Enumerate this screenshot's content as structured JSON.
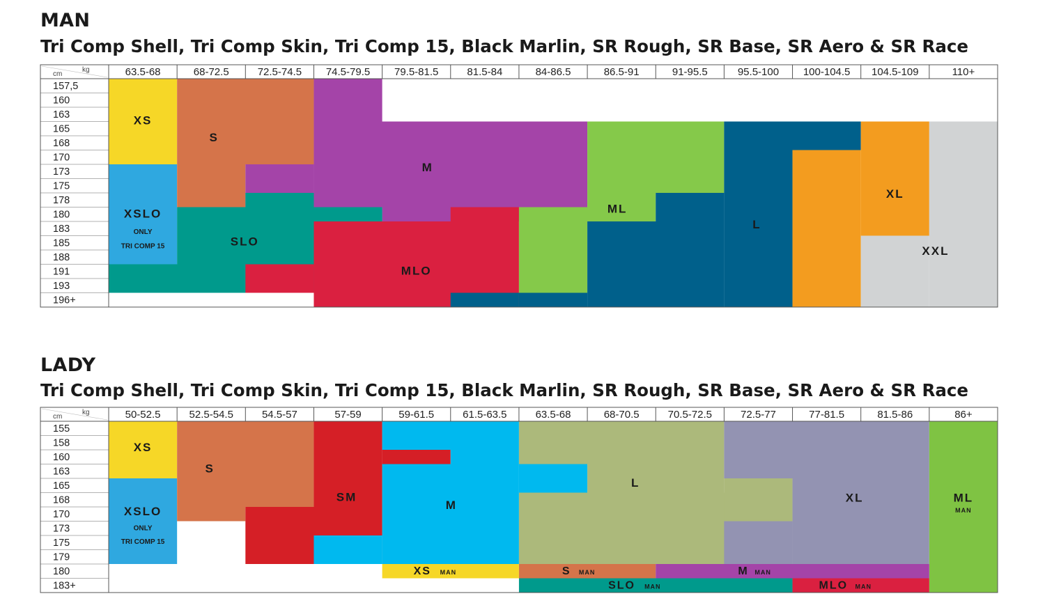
{
  "colors": {
    "yellow": "#f6d727",
    "orange": "#d5744a",
    "purple": "#a444a8",
    "green": "#85c94a",
    "navy": "#00608b",
    "amber": "#f39c1f",
    "lightgray": "#d1d3d4",
    "blue": "#2fa8e0",
    "teal": "#009a8c",
    "red": "#da2040",
    "lady_red": "#d51f26",
    "cyan": "#00b9ef",
    "olive": "#acb97b",
    "lavender": "#9393b2",
    "lime": "#7fc343"
  },
  "man": {
    "heading": "MAN",
    "subtitle": "Tri Comp Shell, Tri Comp Skin, Tri Comp 15, Black Marlin, SR Rough, SR Base, SR Aero & SR Race",
    "corner_cm": "cm",
    "corner_kg": "kg",
    "weights": [
      "63.5-68",
      "68-72.5",
      "72.5-74.5",
      "74.5-79.5",
      "79.5-81.5",
      "81.5-84",
      "84-86.5",
      "86.5-91",
      "91-95.5",
      "95.5-100",
      "100-104.5",
      "104.5-109",
      "110+"
    ],
    "heights": [
      "157,5",
      "160",
      "163",
      "165",
      "168",
      "170",
      "173",
      "175",
      "178",
      "180",
      "183",
      "185",
      "188",
      "191",
      "193",
      "196+"
    ],
    "sizes": [
      {
        "label": "XS",
        "color": "yellow",
        "cells": [
          [
            0,
            0
          ],
          [
            0,
            5
          ]
        ]
      },
      {
        "label": "S",
        "color": "orange",
        "cells": [
          [
            1,
            0
          ],
          [
            2,
            5
          ],
          [
            1,
            6
          ],
          [
            1,
            8
          ]
        ]
      },
      {
        "label": "M",
        "color": "purple",
        "cells": [
          [
            3,
            0
          ],
          [
            3,
            2
          ],
          [
            4,
            3
          ],
          [
            6,
            3
          ],
          [
            2,
            6
          ],
          [
            3,
            8
          ],
          [
            5,
            9
          ],
          [
            5,
            10
          ]
        ]
      },
      {
        "label": "ML",
        "color": "green",
        "cells": [
          [
            7,
            3
          ],
          [
            8,
            3
          ],
          [
            7,
            8
          ],
          [
            9,
            8
          ],
          [
            6,
            9
          ],
          [
            6,
            14
          ]
        ]
      },
      {
        "label": "L",
        "color": "navy",
        "cells": [
          [
            9,
            3
          ],
          [
            10,
            3
          ],
          [
            8,
            9
          ],
          [
            8,
            10
          ],
          [
            9,
            15
          ],
          [
            11,
            15
          ]
        ]
      },
      {
        "label": "XL",
        "color": "amber",
        "cells": [
          [
            11,
            3
          ],
          [
            10,
            5
          ],
          [
            11,
            11
          ],
          [
            10,
            15
          ]
        ]
      },
      {
        "label": "XXL",
        "color": "lightgray",
        "cells": [
          [
            12,
            3
          ],
          [
            11,
            12
          ],
          [
            12,
            15
          ]
        ]
      },
      {
        "label": "XSLO",
        "note": "ONLY TRI COMP 15",
        "color": "blue",
        "cells": [
          [
            0,
            6
          ],
          [
            0,
            12
          ]
        ]
      },
      {
        "label": "SLO",
        "color": "teal",
        "cells": [
          [
            1,
            9
          ],
          [
            2,
            8
          ],
          [
            3,
            9
          ],
          [
            0,
            13
          ],
          [
            1,
            14
          ]
        ]
      },
      {
        "label": "MLO",
        "color": "red",
        "cells": [
          [
            4,
            10
          ],
          [
            3,
            13
          ],
          [
            5,
            9
          ],
          [
            3,
            14
          ],
          [
            5,
            15
          ]
        ]
      }
    ]
  },
  "lady": {
    "heading": "LADY",
    "subtitle": "Tri Comp Shell, Tri Comp Skin, Tri Comp 15, Black Marlin, SR Rough, SR Base, SR Aero & SR Race",
    "corner_cm": "cm",
    "corner_kg": "kg",
    "weights": [
      "50-52.5",
      "52.5-54.5",
      "54.5-57",
      "57-59",
      "59-61.5",
      "61.5-63.5",
      "63.5-68",
      "68-70.5",
      "70.5-72.5",
      "72.5-77",
      "77-81.5",
      "81.5-86",
      "86+"
    ],
    "heights": [
      "155",
      "158",
      "160",
      "163",
      "165",
      "168",
      "170",
      "173",
      "175",
      "179",
      "180",
      "183+"
    ],
    "sizes": [
      {
        "label": "XS",
        "color": "yellow",
        "cells": [
          [
            0,
            0
          ],
          [
            0,
            3
          ]
        ]
      },
      {
        "label": "S",
        "color": "orange",
        "cells": [
          [
            1,
            0
          ],
          [
            2,
            5
          ],
          [
            1,
            6
          ],
          [
            1,
            9
          ]
        ]
      },
      {
        "label": "SM",
        "color": "lady_red",
        "cells": [
          [
            3,
            0
          ],
          [
            3,
            2
          ],
          [
            4,
            2
          ],
          [
            4,
            3
          ],
          [
            2,
            6
          ],
          [
            2,
            9
          ]
        ]
      },
      {
        "label": "M",
        "color": "cyan",
        "cells": [
          [
            4,
            0
          ],
          [
            5,
            1
          ],
          [
            6,
            3
          ],
          [
            6,
            4
          ],
          [
            6,
            5
          ],
          [
            3,
            9
          ],
          [
            5,
            9
          ]
        ]
      },
      {
        "label": "L",
        "color": "olive",
        "cells": [
          [
            6,
            0
          ],
          [
            8,
            2
          ],
          [
            7,
            3
          ],
          [
            9,
            4
          ],
          [
            9,
            5
          ],
          [
            10,
            6
          ],
          [
            6,
            6
          ],
          [
            9,
            9
          ]
        ]
      },
      {
        "label": "XL",
        "color": "lavender",
        "cells": [
          [
            9,
            0
          ],
          [
            11,
            9
          ],
          [
            10,
            6
          ]
        ]
      },
      {
        "label": "XSLO",
        "note": "ONLY TRI COMP 15",
        "color": "blue",
        "cells": [
          [
            0,
            4
          ],
          [
            0,
            9
          ]
        ]
      },
      {
        "label": "ML",
        "note": "MAN",
        "color": "lime",
        "cells": [
          [
            12,
            0
          ],
          [
            12,
            11
          ]
        ]
      }
    ],
    "man_sizes": [
      {
        "label": "XS",
        "note": "MAN",
        "color": "yellow",
        "cells": [
          [
            4,
            10
          ],
          [
            5,
            10
          ]
        ]
      },
      {
        "label": "S",
        "note": "MAN",
        "color": "orange",
        "cells": [
          [
            6,
            10
          ],
          [
            7,
            10
          ]
        ]
      },
      {
        "label": "M",
        "note": "MAN",
        "color": "purple",
        "cells": [
          [
            8,
            10
          ],
          [
            11,
            10
          ]
        ]
      },
      {
        "label": "SLO",
        "note": "MAN",
        "color": "teal",
        "cells": [
          [
            6,
            11
          ],
          [
            9,
            11
          ]
        ]
      },
      {
        "label": "MLO",
        "note": "MAN",
        "color": "red",
        "cells": [
          [
            10,
            11
          ],
          [
            11,
            11
          ]
        ]
      }
    ]
  }
}
